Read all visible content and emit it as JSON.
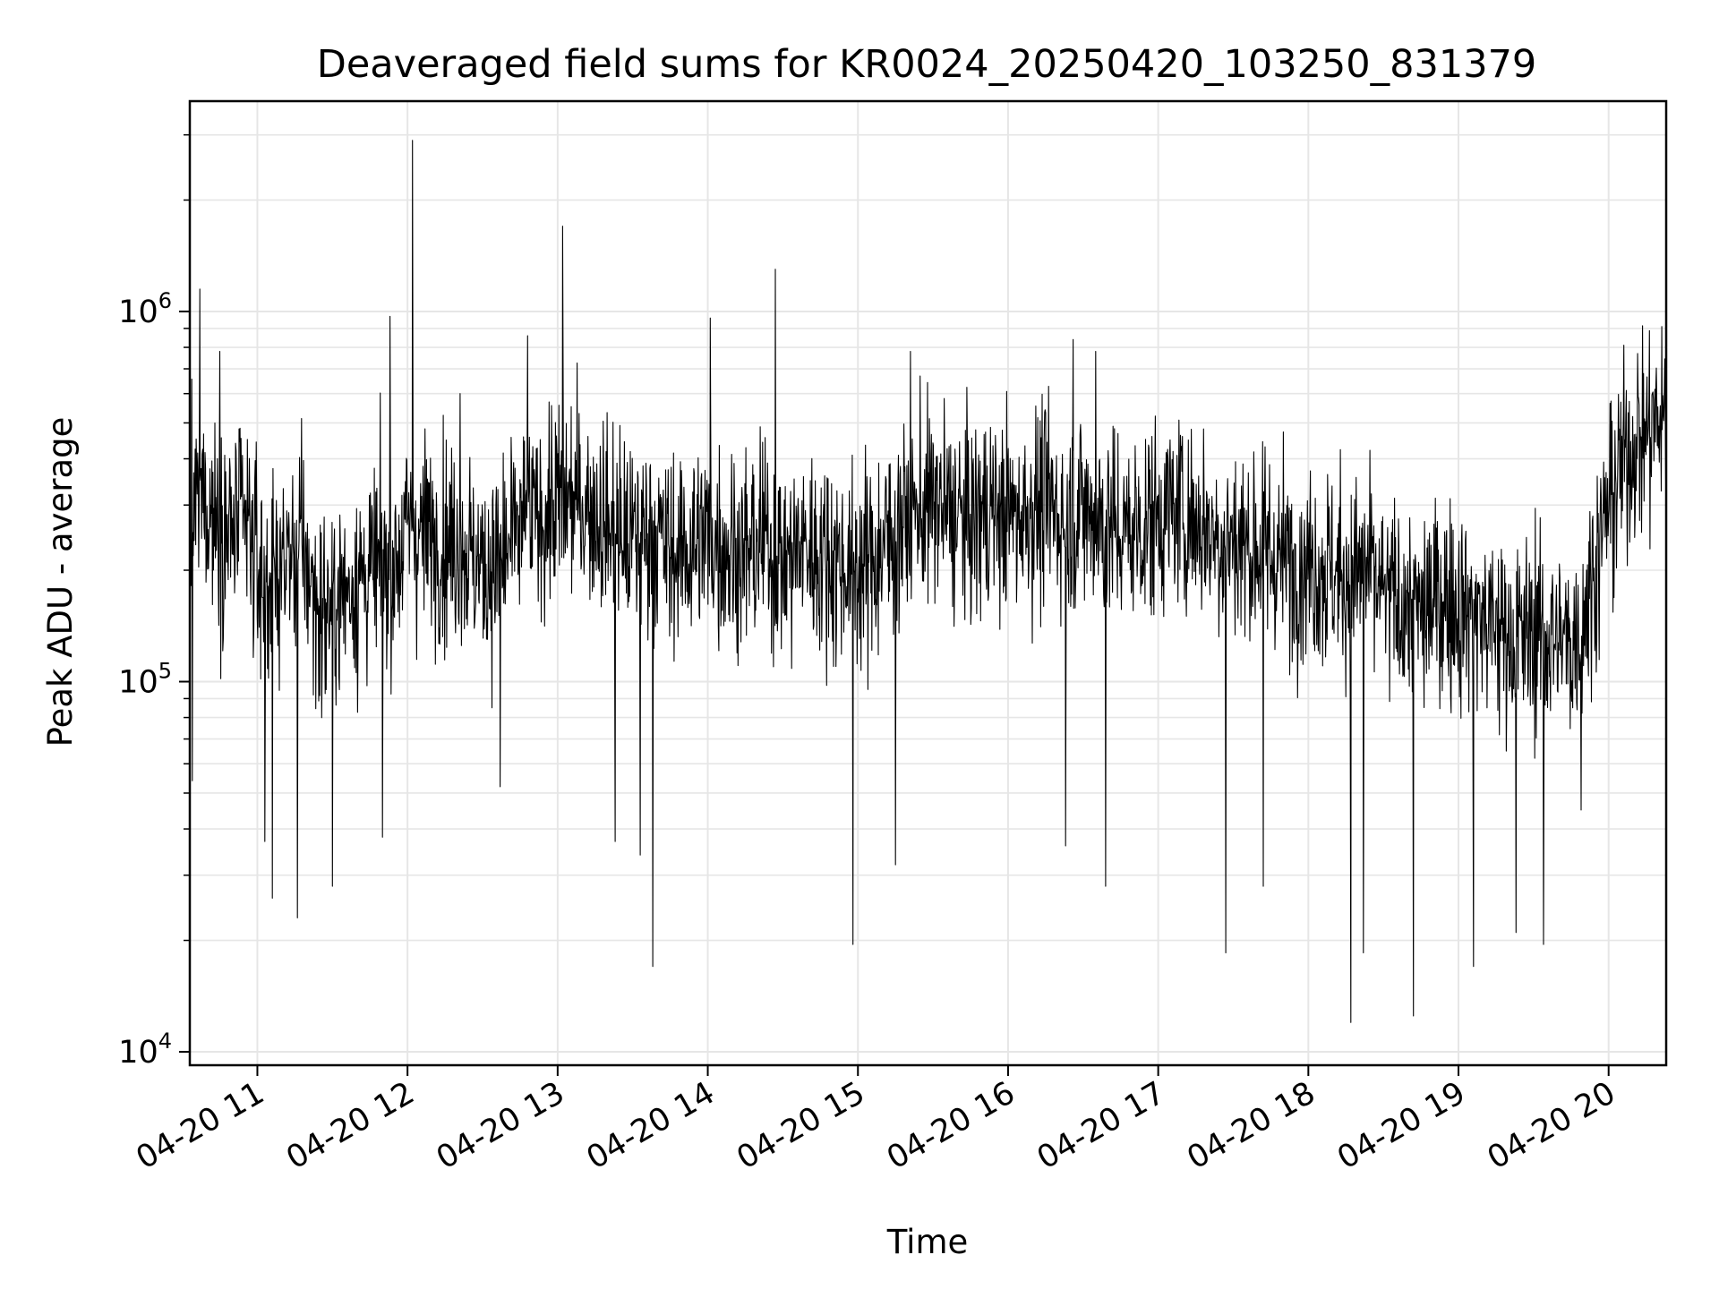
{
  "chart_data": {
    "type": "line",
    "title": "Deaveraged field sums for KR0024_20250420_103250_831379",
    "xlabel": "Time",
    "ylabel": "Peak ADU - average",
    "yscale": "log",
    "xlim": [
      "04-20 10:33",
      "04-20 20:23"
    ],
    "ylim": [
      9200,
      3700000
    ],
    "grid": true,
    "line_color": "#000000",
    "grid_color": "#e6e6e6",
    "x_ticks": [
      "04-20 11",
      "04-20 12",
      "04-20 13",
      "04-20 14",
      "04-20 15",
      "04-20 16",
      "04-20 17",
      "04-20 18",
      "04-20 19",
      "04-20 20"
    ],
    "y_ticks": [
      {
        "base": "10",
        "exp": "4",
        "value": 10000
      },
      {
        "base": "10",
        "exp": "5",
        "value": 100000
      },
      {
        "base": "10",
        "exp": "6",
        "value": 1000000
      }
    ],
    "series": [
      {
        "x": [
          "10:33",
          "10:37",
          "10:42",
          "10:48",
          "10:55",
          "11:03",
          "11:10",
          "11:18",
          "11:25",
          "11:33",
          "11:40",
          "11:47",
          "11:55",
          "12:00",
          "12:08",
          "12:15",
          "12:23",
          "12:30",
          "12:38",
          "12:45",
          "12:53",
          "13:00",
          "13:08",
          "13:15",
          "13:23",
          "13:30",
          "13:38",
          "13:45",
          "13:53",
          "14:00",
          "14:08",
          "14:15",
          "14:23",
          "14:30",
          "14:38",
          "14:45",
          "14:53",
          "15:00",
          "15:08",
          "15:15",
          "15:23",
          "15:30",
          "15:38",
          "15:45",
          "15:53",
          "16:00",
          "16:08",
          "16:15",
          "16:23",
          "16:30",
          "16:38",
          "16:45",
          "16:53",
          "17:00",
          "17:08",
          "17:15",
          "17:23",
          "17:30",
          "17:38",
          "17:45",
          "17:53",
          "18:00",
          "18:08",
          "18:15",
          "18:23",
          "18:30",
          "18:38",
          "18:45",
          "18:53",
          "19:00",
          "19:08",
          "19:15",
          "19:23",
          "19:30",
          "19:38",
          "19:45",
          "19:53",
          "20:00",
          "20:08",
          "20:15",
          "20:23"
        ],
        "y": [
          260000,
          320000,
          290000,
          250000,
          270000,
          180000,
          210000,
          230000,
          150000,
          170000,
          190000,
          200000,
          210000,
          260000,
          250000,
          240000,
          230000,
          200000,
          210000,
          260000,
          280000,
          300000,
          310000,
          290000,
          250000,
          240000,
          260000,
          220000,
          230000,
          250000,
          230000,
          220000,
          240000,
          210000,
          230000,
          220000,
          210000,
          200000,
          220000,
          260000,
          290000,
          300000,
          280000,
          270000,
          290000,
          280000,
          290000,
          300000,
          280000,
          290000,
          270000,
          250000,
          260000,
          280000,
          290000,
          270000,
          250000,
          240000,
          230000,
          220000,
          210000,
          210000,
          200000,
          190000,
          200000,
          170000,
          160000,
          150000,
          170000,
          160000,
          150000,
          140000,
          130000,
          135000,
          130000,
          125000,
          180000,
          300000,
          420000,
          480000,
          510000
        ],
        "spikes_up": [
          {
            "x": "10:37",
            "y": 1150000
          },
          {
            "x": "10:45",
            "y": 780000
          },
          {
            "x": "11:53",
            "y": 970000
          },
          {
            "x": "12:02",
            "y": 2900000
          },
          {
            "x": "12:21",
            "y": 600000
          },
          {
            "x": "12:48",
            "y": 860000
          },
          {
            "x": "13:02",
            "y": 1700000
          },
          {
            "x": "14:01",
            "y": 960000
          },
          {
            "x": "14:27",
            "y": 1300000
          },
          {
            "x": "15:21",
            "y": 780000
          },
          {
            "x": "16:26",
            "y": 840000
          },
          {
            "x": "16:35",
            "y": 780000
          },
          {
            "x": "20:23",
            "y": 1170000
          }
        ],
        "spikes_down": [
          {
            "x": "10:34",
            "y": 54000
          },
          {
            "x": "11:03",
            "y": 37000
          },
          {
            "x": "11:06",
            "y": 26000
          },
          {
            "x": "11:16",
            "y": 23000
          },
          {
            "x": "11:30",
            "y": 28000
          },
          {
            "x": "11:50",
            "y": 38000
          },
          {
            "x": "12:37",
            "y": 52000
          },
          {
            "x": "13:23",
            "y": 37000
          },
          {
            "x": "13:33",
            "y": 34000
          },
          {
            "x": "13:38",
            "y": 17000
          },
          {
            "x": "14:58",
            "y": 19500
          },
          {
            "x": "15:15",
            "y": 32000
          },
          {
            "x": "16:23",
            "y": 36000
          },
          {
            "x": "16:39",
            "y": 28000
          },
          {
            "x": "17:27",
            "y": 18500
          },
          {
            "x": "17:42",
            "y": 28000
          },
          {
            "x": "18:17",
            "y": 12000
          },
          {
            "x": "18:22",
            "y": 18500
          },
          {
            "x": "18:42",
            "y": 12500
          },
          {
            "x": "19:06",
            "y": 17000
          },
          {
            "x": "19:23",
            "y": 21000
          },
          {
            "x": "19:34",
            "y": 19500
          },
          {
            "x": "19:49",
            "y": 45000
          }
        ]
      }
    ]
  }
}
